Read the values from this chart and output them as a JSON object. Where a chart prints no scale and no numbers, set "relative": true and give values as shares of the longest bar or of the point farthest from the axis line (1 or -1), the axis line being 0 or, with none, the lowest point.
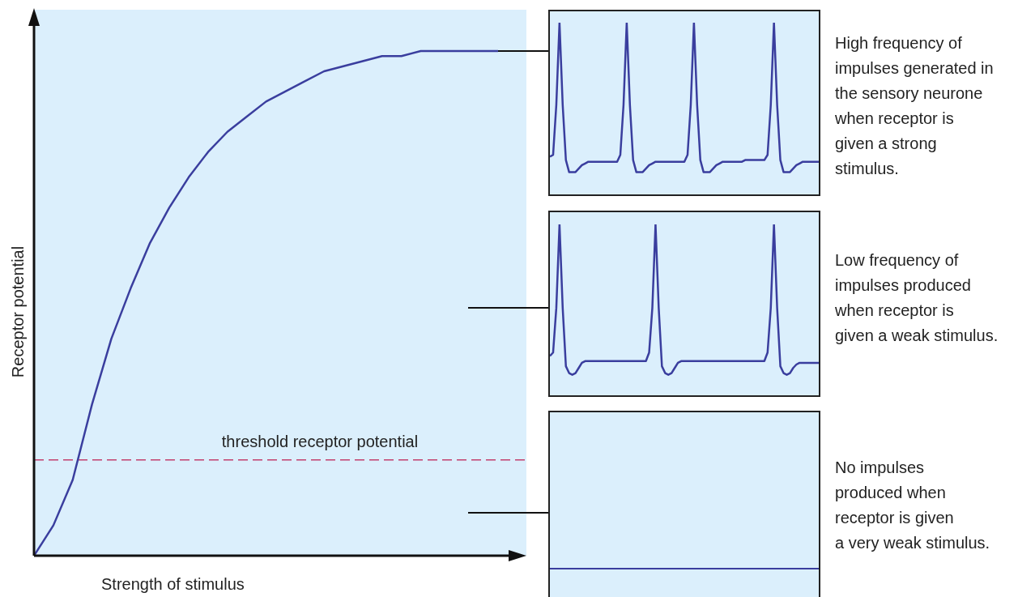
{
  "chart_data": [
    {
      "type": "line",
      "relative": true,
      "xlabel": "Strength of stimulus",
      "ylabel": "Receptor potential",
      "categories": [
        null,
        null,
        null,
        null,
        null,
        null,
        null,
        null,
        null,
        null,
        null,
        null,
        null,
        null,
        null,
        null,
        null,
        null,
        null,
        null,
        null,
        null,
        null,
        null,
        null
      ],
      "series": [
        {
          "color": "#3a3e9e",
          "values": [
            0,
            0.06,
            0.15,
            0.3,
            0.43,
            0.53,
            0.62,
            0.69,
            0.75,
            0.8,
            0.84,
            0.87,
            0.9,
            0.92,
            0.94,
            0.96,
            0.97,
            0.98,
            0.99,
            0.99,
            1,
            1,
            1,
            1,
            1
          ]
        }
      ],
      "ref_lines": [
        {
          "axis": "y",
          "value": 0.19,
          "label": "threshold receptor potential",
          "color": "#c2406e",
          "line_style": "dashed"
        }
      ]
    },
    {
      "type": "line",
      "relative": true,
      "annotations": [
        "High frequency of\nimpulses generated in\nthe sensory neurone\nwhen receptor is\ngiven a strong\nstimulus."
      ],
      "categories": [
        null,
        null,
        null,
        null,
        null,
        null,
        null,
        null,
        null,
        null,
        null,
        null,
        null,
        null,
        null,
        null,
        null,
        null,
        null,
        null,
        null,
        null,
        null,
        null,
        null,
        null,
        null,
        null,
        null,
        null,
        null,
        null,
        null,
        null,
        null,
        null,
        null,
        null,
        null,
        null,
        null,
        null,
        null,
        null,
        null,
        null,
        null,
        null,
        null,
        null,
        null,
        null,
        null,
        null,
        null,
        null,
        null,
        null,
        null,
        null,
        null,
        null,
        null,
        null,
        null,
        null,
        null,
        null,
        null,
        null,
        null,
        null,
        null,
        null,
        null,
        null,
        null,
        null,
        null,
        null,
        null,
        null,
        null,
        null,
        null
      ],
      "series": [
        {
          "color": "#3a3e9e",
          "values": [
            0.22,
            0.23,
            0.52,
            1,
            0.52,
            0.2,
            0.13,
            0.13,
            0.13,
            0.15,
            0.17,
            0.18,
            0.19,
            0.19,
            0.19,
            0.19,
            0.19,
            0.19,
            0.19,
            0.19,
            0.19,
            0.19,
            0.23,
            0.52,
            1,
            0.52,
            0.2,
            0.13,
            0.13,
            0.13,
            0.15,
            0.17,
            0.18,
            0.19,
            0.19,
            0.19,
            0.19,
            0.19,
            0.19,
            0.19,
            0.19,
            0.19,
            0.19,
            0.23,
            0.52,
            1,
            0.52,
            0.2,
            0.13,
            0.13,
            0.13,
            0.15,
            0.17,
            0.18,
            0.19,
            0.19,
            0.19,
            0.19,
            0.19,
            0.19,
            0.19,
            0.2,
            0.2,
            0.2,
            0.2,
            0.2,
            0.2,
            0.2,
            0.23,
            0.52,
            1,
            0.52,
            0.2,
            0.13,
            0.13,
            0.13,
            0.15,
            0.17,
            0.18,
            0.19,
            0.19,
            0.19,
            0.19,
            0.19,
            0.19
          ]
        }
      ]
    },
    {
      "type": "line",
      "relative": true,
      "annotations": [
        "Low frequency of\nimpulses produced\nwhen receptor is\ngiven a weak stimulus."
      ],
      "categories": [
        null,
        null,
        null,
        null,
        null,
        null,
        null,
        null,
        null,
        null,
        null,
        null,
        null,
        null,
        null,
        null,
        null,
        null,
        null,
        null,
        null,
        null,
        null,
        null,
        null,
        null,
        null,
        null,
        null,
        null,
        null,
        null,
        null,
        null,
        null,
        null,
        null,
        null,
        null,
        null,
        null,
        null,
        null,
        null,
        null,
        null,
        null,
        null,
        null,
        null,
        null,
        null,
        null,
        null,
        null,
        null,
        null,
        null,
        null,
        null,
        null,
        null,
        null,
        null,
        null,
        null,
        null,
        null,
        null,
        null,
        null,
        null,
        null,
        null,
        null,
        null,
        null,
        null,
        null,
        null,
        null,
        null,
        null,
        null,
        null
      ],
      "series": [
        {
          "color": "#3a3e9e",
          "values": [
            0.23,
            0.25,
            0.51,
            1,
            0.51,
            0.17,
            0.13,
            0.12,
            0.13,
            0.16,
            0.19,
            0.2,
            0.2,
            0.2,
            0.2,
            0.2,
            0.2,
            0.2,
            0.2,
            0.2,
            0.2,
            0.2,
            0.2,
            0.2,
            0.2,
            0.2,
            0.2,
            0.2,
            0.2,
            0.2,
            0.2,
            0.25,
            0.51,
            1,
            0.51,
            0.17,
            0.13,
            0.12,
            0.13,
            0.16,
            0.19,
            0.2,
            0.2,
            0.2,
            0.2,
            0.2,
            0.2,
            0.2,
            0.2,
            0.2,
            0.2,
            0.2,
            0.2,
            0.2,
            0.2,
            0.2,
            0.2,
            0.2,
            0.2,
            0.2,
            0.2,
            0.2,
            0.2,
            0.2,
            0.2,
            0.2,
            0.2,
            0.2,
            0.25,
            0.51,
            1,
            0.51,
            0.17,
            0.13,
            0.12,
            0.13,
            0.16,
            0.18,
            0.19,
            0.19,
            0.19,
            0.19,
            0.19,
            0.19,
            0.19
          ]
        }
      ]
    },
    {
      "type": "other",
      "annotations": [
        "No impulses\nproduced when\nreceptor is given\na very weak stimulus."
      ]
    }
  ]
}
